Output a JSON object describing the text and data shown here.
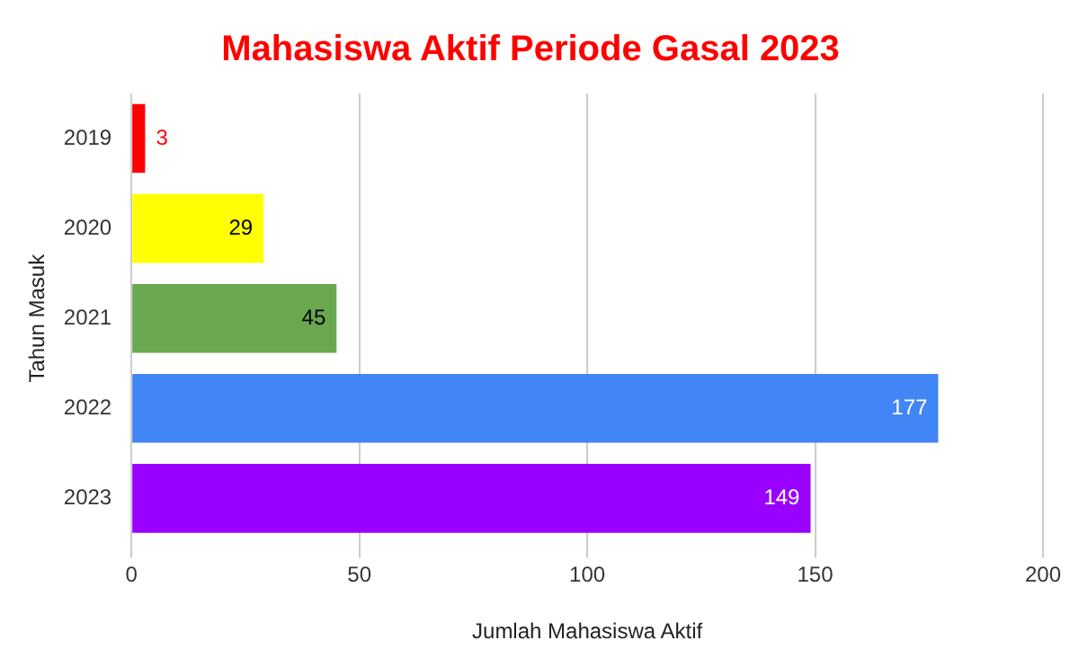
{
  "chart_data": {
    "type": "bar",
    "orientation": "horizontal",
    "title": "Mahasiswa Aktif Periode Gasal 2023",
    "xlabel": "Jumlah Mahasiswa Aktif",
    "ylabel": "Tahun Masuk",
    "categories": [
      "2019",
      "2020",
      "2021",
      "2022",
      "2023"
    ],
    "values": [
      3,
      29,
      45,
      177,
      149
    ],
    "colors": [
      "#ff0000",
      "#ffff00",
      "#6aa84f",
      "#4285f4",
      "#9900ff"
    ],
    "xlim": [
      0,
      200
    ],
    "xticks": [
      0,
      50,
      100,
      150,
      200
    ],
    "grid": "x",
    "data_labels": true,
    "legend": false
  }
}
